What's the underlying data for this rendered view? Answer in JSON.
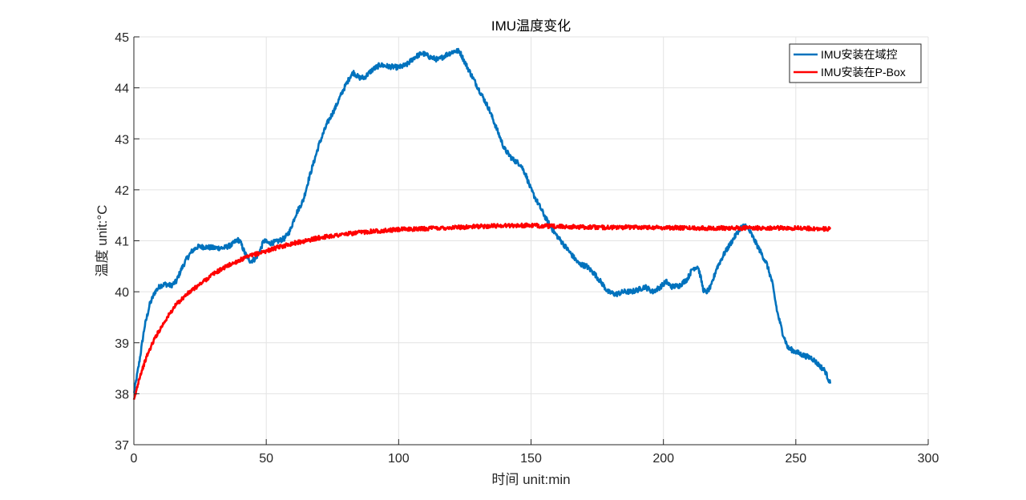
{
  "chart_data": {
    "type": "line",
    "title": "IMU温度变化",
    "xlabel": "时间 unit:min",
    "ylabel": "温度 unit:°C",
    "xlim": [
      0,
      300
    ],
    "ylim": [
      37,
      45
    ],
    "xticks": [
      0,
      50,
      100,
      150,
      200,
      250,
      300
    ],
    "yticks": [
      37,
      38,
      39,
      40,
      41,
      42,
      43,
      44,
      45
    ],
    "grid": true,
    "legend_position": "top-right",
    "series": [
      {
        "name": "IMU安装在域控",
        "color": "#0072bd",
        "noise": 0.05,
        "points": [
          [
            0,
            38.0
          ],
          [
            2,
            38.6
          ],
          [
            4,
            39.3
          ],
          [
            6,
            39.75
          ],
          [
            8,
            40.0
          ],
          [
            10,
            40.12
          ],
          [
            12,
            40.15
          ],
          [
            14,
            40.12
          ],
          [
            16,
            40.2
          ],
          [
            18,
            40.45
          ],
          [
            20,
            40.65
          ],
          [
            22,
            40.8
          ],
          [
            24,
            40.88
          ],
          [
            27,
            40.88
          ],
          [
            30,
            40.86
          ],
          [
            34,
            40.86
          ],
          [
            37,
            40.92
          ],
          [
            39,
            41.02
          ],
          [
            40,
            41.0
          ],
          [
            42,
            40.75
          ],
          [
            44,
            40.6
          ],
          [
            46,
            40.65
          ],
          [
            48,
            40.85
          ],
          [
            49,
            41.0
          ],
          [
            51,
            40.95
          ],
          [
            54,
            40.98
          ],
          [
            57,
            41.05
          ],
          [
            59,
            41.2
          ],
          [
            61,
            41.5
          ],
          [
            64,
            41.8
          ],
          [
            66,
            42.2
          ],
          [
            68,
            42.55
          ],
          [
            70,
            42.9
          ],
          [
            73,
            43.3
          ],
          [
            76,
            43.6
          ],
          [
            79,
            43.95
          ],
          [
            82,
            44.25
          ],
          [
            83,
            44.3
          ],
          [
            85,
            44.2
          ],
          [
            87,
            44.2
          ],
          [
            90,
            44.35
          ],
          [
            93,
            44.45
          ],
          [
            96,
            44.42
          ],
          [
            100,
            44.4
          ],
          [
            103,
            44.45
          ],
          [
            106,
            44.6
          ],
          [
            109,
            44.68
          ],
          [
            112,
            44.6
          ],
          [
            115,
            44.55
          ],
          [
            118,
            44.65
          ],
          [
            121,
            44.72
          ],
          [
            123,
            44.72
          ],
          [
            125,
            44.5
          ],
          [
            128,
            44.2
          ],
          [
            131,
            43.9
          ],
          [
            134,
            43.6
          ],
          [
            137,
            43.2
          ],
          [
            140,
            42.8
          ],
          [
            143,
            42.6
          ],
          [
            146,
            42.5
          ],
          [
            148,
            42.3
          ],
          [
            150,
            42.0
          ],
          [
            153,
            41.7
          ],
          [
            156,
            41.4
          ],
          [
            159,
            41.15
          ],
          [
            162,
            40.95
          ],
          [
            165,
            40.75
          ],
          [
            168,
            40.55
          ],
          [
            171,
            40.5
          ],
          [
            174,
            40.35
          ],
          [
            177,
            40.15
          ],
          [
            179,
            40.0
          ],
          [
            182,
            39.95
          ],
          [
            185,
            40.0
          ],
          [
            188,
            40.0
          ],
          [
            191,
            40.05
          ],
          [
            193,
            40.1
          ],
          [
            196,
            40.0
          ],
          [
            199,
            40.1
          ],
          [
            201,
            40.2
          ],
          [
            203,
            40.1
          ],
          [
            206,
            40.12
          ],
          [
            209,
            40.25
          ],
          [
            211,
            40.45
          ],
          [
            213,
            40.5
          ],
          [
            214,
            40.3
          ],
          [
            215,
            40.05
          ],
          [
            216,
            39.98
          ],
          [
            218,
            40.1
          ],
          [
            220,
            40.45
          ],
          [
            223,
            40.75
          ],
          [
            226,
            41.0
          ],
          [
            229,
            41.25
          ],
          [
            231,
            41.3
          ],
          [
            233,
            41.15
          ],
          [
            236,
            40.85
          ],
          [
            239,
            40.55
          ],
          [
            241,
            40.2
          ],
          [
            243,
            39.6
          ],
          [
            245,
            39.2
          ],
          [
            247,
            38.9
          ],
          [
            250,
            38.82
          ],
          [
            253,
            38.75
          ],
          [
            256,
            38.7
          ],
          [
            259,
            38.55
          ],
          [
            261,
            38.45
          ],
          [
            263,
            38.2
          ]
        ]
      },
      {
        "name": "IMU安装在P-Box",
        "color": "#ff0000",
        "noise": 0.04,
        "points": [
          [
            0,
            37.85
          ],
          [
            2,
            38.3
          ],
          [
            5,
            38.75
          ],
          [
            8,
            39.1
          ],
          [
            12,
            39.45
          ],
          [
            16,
            39.75
          ],
          [
            20,
            39.95
          ],
          [
            25,
            40.15
          ],
          [
            30,
            40.35
          ],
          [
            35,
            40.5
          ],
          [
            40,
            40.62
          ],
          [
            45,
            40.72
          ],
          [
            50,
            40.8
          ],
          [
            55,
            40.88
          ],
          [
            60,
            40.95
          ],
          [
            65,
            41.0
          ],
          [
            70,
            41.06
          ],
          [
            75,
            41.1
          ],
          [
            80,
            41.13
          ],
          [
            85,
            41.16
          ],
          [
            90,
            41.19
          ],
          [
            95,
            41.2
          ],
          [
            100,
            41.22
          ],
          [
            110,
            41.24
          ],
          [
            120,
            41.26
          ],
          [
            130,
            41.28
          ],
          [
            140,
            41.3
          ],
          [
            150,
            41.3
          ],
          [
            160,
            41.28
          ],
          [
            170,
            41.27
          ],
          [
            180,
            41.26
          ],
          [
            190,
            41.27
          ],
          [
            200,
            41.26
          ],
          [
            210,
            41.25
          ],
          [
            220,
            41.25
          ],
          [
            230,
            41.25
          ],
          [
            240,
            41.25
          ],
          [
            250,
            41.25
          ],
          [
            263,
            41.23
          ]
        ]
      }
    ]
  }
}
